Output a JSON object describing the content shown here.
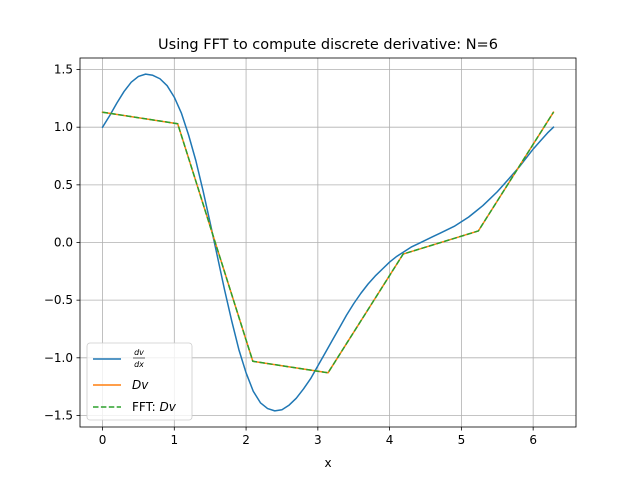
{
  "chart_data": {
    "type": "line",
    "title": "Using FFT to compute discrete derivative: N=6",
    "xlabel": "x",
    "ylabel": "",
    "xlim": [
      -0.314,
      6.597
    ],
    "ylim": [
      -1.6,
      1.6
    ],
    "xticks": [
      0,
      1,
      2,
      3,
      4,
      5,
      6
    ],
    "yticks": [
      -1.5,
      -1.0,
      -0.5,
      0.0,
      0.5,
      1.0,
      1.5
    ],
    "xtick_labels": [
      "0",
      "1",
      "2",
      "3",
      "4",
      "5",
      "6"
    ],
    "ytick_labels": [
      "−1.5",
      "−1.0",
      "−0.5",
      "0.0",
      "0.5",
      "1.0",
      "1.5"
    ],
    "grid": true,
    "legend_position": "lower-left",
    "series": [
      {
        "name": "dv/dx",
        "legend_num": "dv",
        "legend_den": "dx",
        "color": "#1f77b4",
        "style": "solid",
        "x": [
          0.0,
          0.1,
          0.2,
          0.3,
          0.4,
          0.5,
          0.6,
          0.7,
          0.8,
          0.9,
          1.0,
          1.1,
          1.2,
          1.3,
          1.4,
          1.5,
          1.6,
          1.7,
          1.8,
          1.9,
          2.0,
          2.1,
          2.2,
          2.3,
          2.4,
          2.5,
          2.6,
          2.7,
          2.8,
          2.9,
          3.0,
          3.1,
          3.2,
          3.3,
          3.4,
          3.5,
          3.6,
          3.7,
          3.8,
          3.9,
          4.0,
          4.1,
          4.2,
          4.3,
          4.4,
          4.5,
          4.6,
          4.7,
          4.8,
          4.9,
          5.0,
          5.1,
          5.2,
          5.3,
          5.4,
          5.5,
          5.6,
          5.7,
          5.8,
          5.9,
          6.0,
          6.1,
          6.2,
          6.283
        ],
        "y": [
          1.0,
          1.1,
          1.21,
          1.31,
          1.39,
          1.44,
          1.46,
          1.45,
          1.42,
          1.36,
          1.26,
          1.12,
          0.93,
          0.71,
          0.45,
          0.17,
          -0.12,
          -0.41,
          -0.68,
          -0.93,
          -1.13,
          -1.29,
          -1.39,
          -1.44,
          -1.46,
          -1.45,
          -1.41,
          -1.35,
          -1.27,
          -1.18,
          -1.07,
          -0.96,
          -0.85,
          -0.74,
          -0.63,
          -0.53,
          -0.44,
          -0.36,
          -0.29,
          -0.23,
          -0.17,
          -0.12,
          -0.08,
          -0.04,
          -0.01,
          0.02,
          0.05,
          0.08,
          0.11,
          0.14,
          0.18,
          0.22,
          0.27,
          0.32,
          0.38,
          0.44,
          0.51,
          0.58,
          0.65,
          0.73,
          0.81,
          0.88,
          0.95,
          1.0
        ]
      },
      {
        "name": "Dv",
        "color": "#ff7f0e",
        "style": "solid",
        "x": [
          0.0,
          1.047,
          2.094,
          3.142,
          4.189,
          5.236,
          6.283
        ],
        "y": [
          1.13,
          1.03,
          -1.03,
          -1.13,
          -0.1,
          0.1,
          1.13
        ]
      },
      {
        "name": "FFT: Dv",
        "legend_prefix": "FFT: ",
        "legend_math": "Dv",
        "color": "#2ca02c",
        "style": "dashed",
        "x": [
          0.0,
          1.047,
          2.094,
          3.142,
          4.189,
          5.236,
          6.283
        ],
        "y": [
          1.13,
          1.03,
          -1.03,
          -1.13,
          -0.1,
          0.1,
          1.13
        ]
      }
    ]
  }
}
